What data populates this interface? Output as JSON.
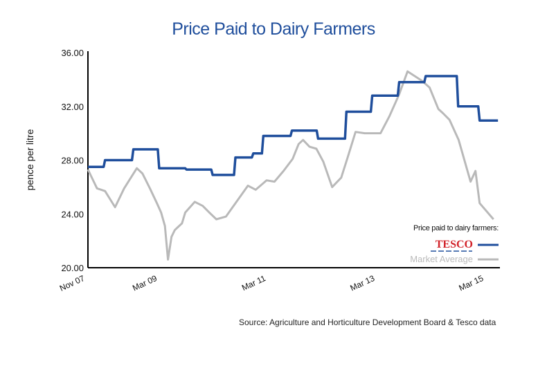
{
  "chart_data": {
    "type": "line",
    "title": "Price Paid to Dairy Farmers",
    "ylabel": "pence per litre",
    "xlabel": "",
    "ylim": [
      20,
      36
    ],
    "yticks": [
      "20.00",
      "24.00",
      "28.00",
      "32.00",
      "36.00"
    ],
    "xlim": [
      "2007-11-01",
      "2015-06-01"
    ],
    "xticks": [
      {
        "label": "Nov 07",
        "date": "2007-11-01"
      },
      {
        "label": "Mar 09",
        "date": "2009-03-01"
      },
      {
        "label": "Mar 11",
        "date": "2011-03-01"
      },
      {
        "label": "Mar 13",
        "date": "2013-03-01"
      },
      {
        "label": "Mar 15",
        "date": "2015-03-01"
      }
    ],
    "grid": false,
    "legend": {
      "placement": "bottom-right",
      "heading": "Price paid to dairy farmers:"
    },
    "source": "Source: Agriculture and Horticulture Development Board & Tesco data",
    "series": [
      {
        "name": "TESCO",
        "color": "#1f4e9c",
        "style": "step",
        "points": [
          [
            "2007-11-01",
            27.5
          ],
          [
            "2008-02-24",
            28.0
          ],
          [
            "2008-09-01",
            28.8
          ],
          [
            "2009-02-21",
            27.4
          ],
          [
            "2009-08-24",
            27.3
          ],
          [
            "2010-02-15",
            26.9
          ],
          [
            "2010-07-18",
            28.2
          ],
          [
            "2010-11-15",
            28.5
          ],
          [
            "2011-01-21",
            29.8
          ],
          [
            "2011-08-01",
            30.2
          ],
          [
            "2012-01-24",
            29.6
          ],
          [
            "2012-08-01",
            31.6
          ],
          [
            "2013-01-21",
            32.8
          ],
          [
            "2013-07-21",
            33.8
          ],
          [
            "2014-01-15",
            34.25
          ],
          [
            "2014-08-21",
            32.0
          ],
          [
            "2015-01-12",
            30.95
          ],
          [
            "2015-05-15",
            30.95
          ]
        ]
      },
      {
        "name": "Market Average",
        "color": "#b9b9b9",
        "style": "line",
        "points": [
          [
            "2007-11-01",
            27.3
          ],
          [
            "2008-01-01",
            25.9
          ],
          [
            "2008-02-24",
            25.7
          ],
          [
            "2008-05-01",
            24.5
          ],
          [
            "2008-07-01",
            25.9
          ],
          [
            "2008-09-24",
            27.4
          ],
          [
            "2008-11-01",
            27.0
          ],
          [
            "2008-12-21",
            25.9
          ],
          [
            "2009-02-06",
            24.8
          ],
          [
            "2009-03-06",
            24.1
          ],
          [
            "2009-04-01",
            23.1
          ],
          [
            "2009-04-21",
            20.6
          ],
          [
            "2009-05-15",
            22.3
          ],
          [
            "2009-06-06",
            22.8
          ],
          [
            "2009-07-24",
            23.3
          ],
          [
            "2009-08-15",
            24.1
          ],
          [
            "2009-10-18",
            24.9
          ],
          [
            "2009-12-10",
            24.6
          ],
          [
            "2010-01-24",
            24.1
          ],
          [
            "2010-03-12",
            23.6
          ],
          [
            "2010-05-15",
            23.8
          ],
          [
            "2010-10-10",
            26.1
          ],
          [
            "2010-12-01",
            25.8
          ],
          [
            "2011-02-12",
            26.5
          ],
          [
            "2011-04-06",
            26.4
          ],
          [
            "2011-06-06",
            27.2
          ],
          [
            "2011-08-06",
            28.1
          ],
          [
            "2011-09-15",
            29.2
          ],
          [
            "2011-10-15",
            29.5
          ],
          [
            "2011-11-27",
            29.0
          ],
          [
            "2012-01-12",
            28.85
          ],
          [
            "2012-02-27",
            27.9
          ],
          [
            "2012-04-27",
            26.0
          ],
          [
            "2012-06-27",
            26.7
          ],
          [
            "2012-08-09",
            28.2
          ],
          [
            "2012-10-01",
            30.1
          ],
          [
            "2012-12-01",
            30.0
          ],
          [
            "2013-03-18",
            30.0
          ],
          [
            "2013-05-18",
            31.3
          ],
          [
            "2013-07-21",
            32.9
          ],
          [
            "2013-09-15",
            34.6
          ],
          [
            "2013-12-21",
            33.9
          ],
          [
            "2014-02-10",
            33.4
          ],
          [
            "2014-04-10",
            31.8
          ],
          [
            "2014-05-10",
            31.5
          ],
          [
            "2014-06-24",
            31.0
          ],
          [
            "2014-08-24",
            29.5
          ],
          [
            "2014-11-12",
            26.4
          ],
          [
            "2014-12-15",
            27.2
          ],
          [
            "2015-01-12",
            24.8
          ],
          [
            "2015-04-15",
            23.6
          ]
        ]
      }
    ]
  }
}
